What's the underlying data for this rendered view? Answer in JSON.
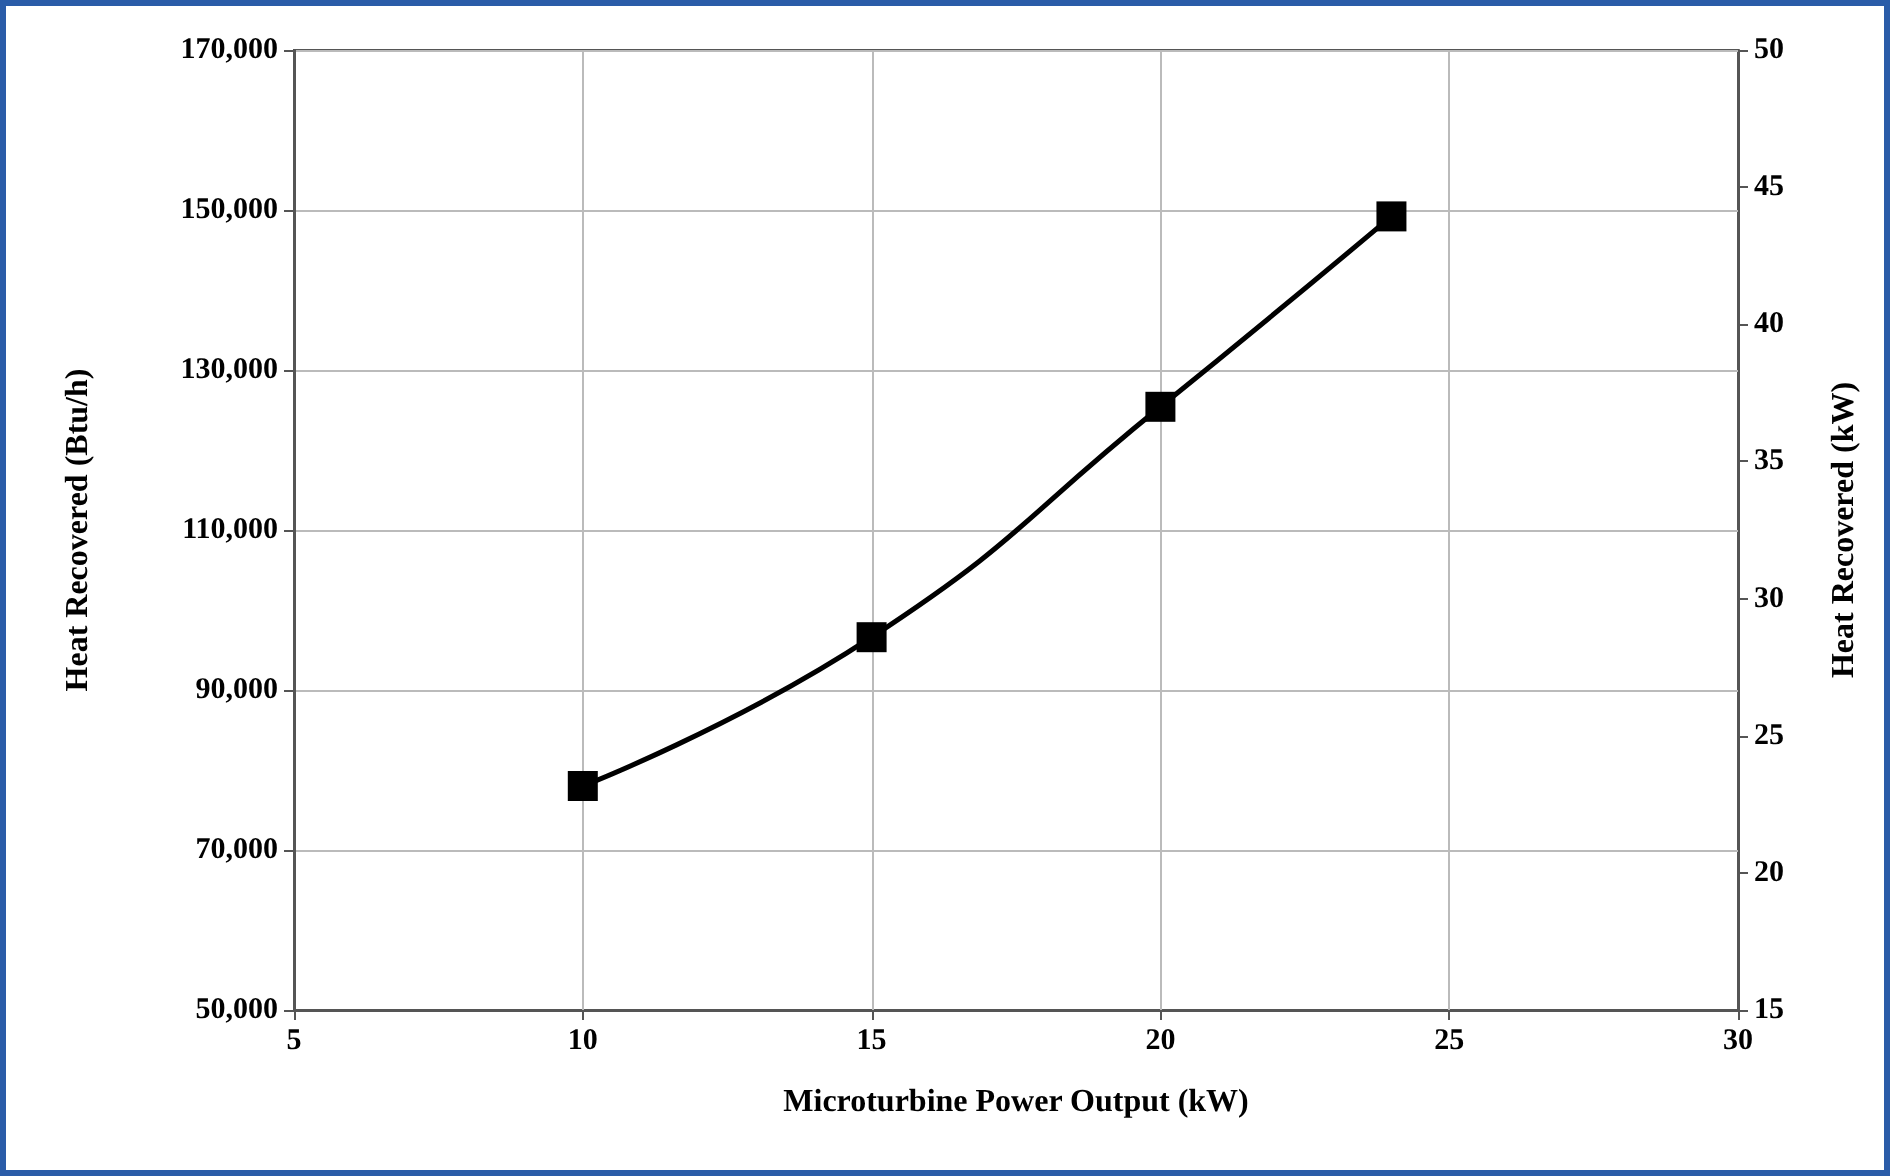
{
  "chart_data": {
    "type": "line",
    "xlabel": "Microturbine Power Output (kW)",
    "ylabel": "Heat Recovered (Btu/h)",
    "y2label": "Heat Recovered (kW)",
    "x": [
      10,
      15,
      20,
      24
    ],
    "series": [
      {
        "color": "#000000",
        "values": [
          78000,
          96600,
          125400,
          149200
        ]
      }
    ],
    "xlim": [
      5,
      30
    ],
    "xticks": [
      5,
      10,
      15,
      20,
      25,
      30
    ],
    "ylim": [
      50000,
      170000
    ],
    "yticks": [
      {
        "value": 50000,
        "label": "50,000"
      },
      {
        "value": 70000,
        "label": "70,000"
      },
      {
        "value": 90000,
        "label": "90,000"
      },
      {
        "value": 110000,
        "label": "110,000"
      },
      {
        "value": 130000,
        "label": "130,000"
      },
      {
        "value": 150000,
        "label": "150,000"
      },
      {
        "value": 170000,
        "label": "170,000"
      }
    ],
    "y2lim": [
      15,
      50
    ],
    "y2ticks": [
      15,
      20,
      25,
      30,
      35,
      40,
      45,
      50
    ],
    "grid": true,
    "marker": "square",
    "line_style": "solid"
  }
}
